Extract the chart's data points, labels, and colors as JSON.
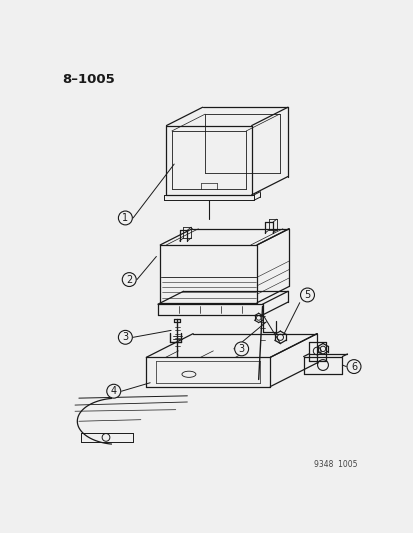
{
  "title_label": "8–1005",
  "footer_label": "9348  1005",
  "bg_color": "#f0f0f0",
  "line_color": "#1a1a1a",
  "figsize": [
    4.14,
    5.33
  ],
  "dpi": 100
}
